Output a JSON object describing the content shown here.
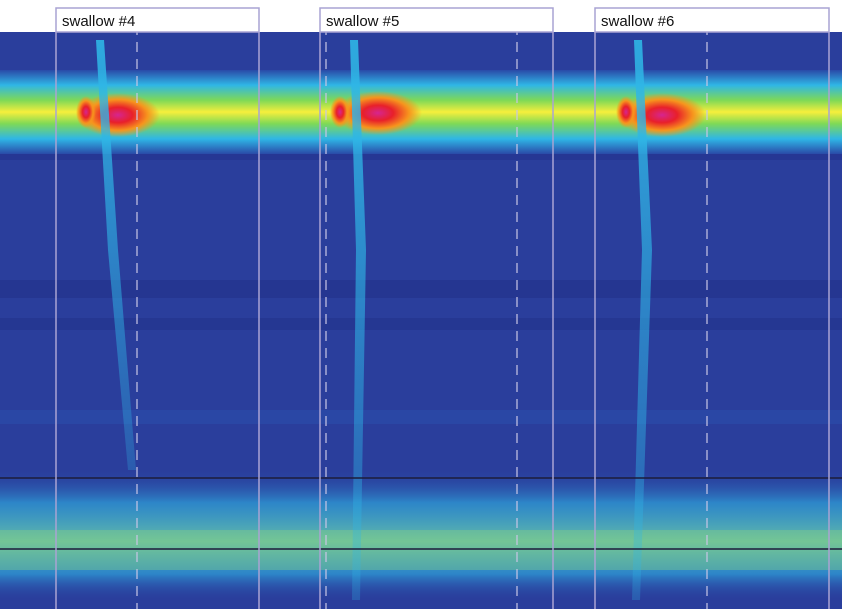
{
  "figure": {
    "windows": [
      {
        "label": "swallow #4"
      },
      {
        "label": "swallow #5"
      },
      {
        "label": "swallow #6"
      }
    ]
  },
  "colors": {
    "background": "#2a3e9c",
    "low": "#24348f",
    "cyan": "#2fb6e6",
    "green": "#7ed957",
    "yellow": "#f6ef3c",
    "orange": "#f7941d",
    "red": "#e8202a",
    "magenta": "#d6258f",
    "window_frame": "#a9a3d3",
    "sensor_line": "#1c1c3a"
  }
}
